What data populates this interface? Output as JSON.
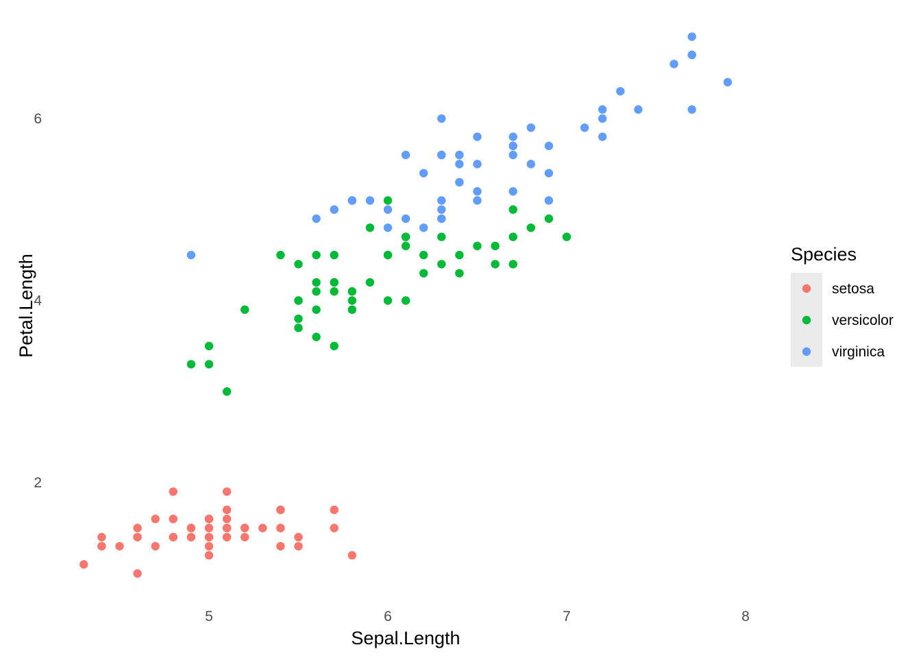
{
  "chart_data": {
    "type": "scatter",
    "xlabel": "Sepal.Length",
    "ylabel": "Petal.Length",
    "xlim": [
      4.3,
      7.9
    ],
    "ylim": [
      1.0,
      6.9
    ],
    "x_ticks": [
      5,
      6,
      7,
      8
    ],
    "y_ticks": [
      2,
      4,
      6
    ],
    "x_tick_labels": [
      "5",
      "6",
      "7",
      "8"
    ],
    "y_tick_labels": [
      "2",
      "4",
      "6"
    ],
    "grid": false,
    "legend": {
      "title": "Species",
      "position": "right"
    },
    "series": [
      {
        "name": "setosa",
        "color": "#F8766D",
        "points": [
          [
            5.1,
            1.4
          ],
          [
            4.9,
            1.4
          ],
          [
            4.7,
            1.3
          ],
          [
            4.6,
            1.5
          ],
          [
            5.0,
            1.4
          ],
          [
            5.4,
            1.7
          ],
          [
            4.6,
            1.4
          ],
          [
            5.0,
            1.5
          ],
          [
            4.4,
            1.4
          ],
          [
            4.9,
            1.5
          ],
          [
            5.4,
            1.5
          ],
          [
            4.8,
            1.6
          ],
          [
            4.8,
            1.4
          ],
          [
            4.3,
            1.1
          ],
          [
            5.8,
            1.2
          ],
          [
            5.7,
            1.5
          ],
          [
            5.4,
            1.3
          ],
          [
            5.1,
            1.4
          ],
          [
            5.7,
            1.7
          ],
          [
            5.1,
            1.5
          ],
          [
            5.4,
            1.7
          ],
          [
            5.1,
            1.5
          ],
          [
            4.6,
            1.0
          ],
          [
            5.1,
            1.7
          ],
          [
            4.8,
            1.9
          ],
          [
            5.0,
            1.6
          ],
          [
            5.0,
            1.6
          ],
          [
            5.2,
            1.5
          ],
          [
            5.2,
            1.4
          ],
          [
            4.7,
            1.6
          ],
          [
            4.8,
            1.6
          ],
          [
            5.4,
            1.5
          ],
          [
            5.2,
            1.5
          ],
          [
            5.5,
            1.4
          ],
          [
            4.9,
            1.5
          ],
          [
            5.0,
            1.2
          ],
          [
            5.5,
            1.3
          ],
          [
            4.9,
            1.4
          ],
          [
            4.4,
            1.3
          ],
          [
            5.1,
            1.5
          ],
          [
            5.0,
            1.3
          ],
          [
            4.5,
            1.3
          ],
          [
            4.4,
            1.3
          ],
          [
            5.0,
            1.6
          ],
          [
            5.1,
            1.9
          ],
          [
            4.8,
            1.4
          ],
          [
            5.1,
            1.6
          ],
          [
            4.6,
            1.4
          ],
          [
            5.3,
            1.5
          ],
          [
            5.0,
            1.4
          ]
        ]
      },
      {
        "name": "versicolor",
        "color": "#00BA38",
        "points": [
          [
            7.0,
            4.7
          ],
          [
            6.4,
            4.5
          ],
          [
            6.9,
            4.9
          ],
          [
            5.5,
            4.0
          ],
          [
            6.5,
            4.6
          ],
          [
            5.7,
            4.5
          ],
          [
            6.3,
            4.7
          ],
          [
            4.9,
            3.3
          ],
          [
            6.6,
            4.6
          ],
          [
            5.2,
            3.9
          ],
          [
            5.0,
            3.5
          ],
          [
            5.9,
            4.2
          ],
          [
            6.0,
            4.0
          ],
          [
            6.1,
            4.7
          ],
          [
            5.6,
            3.6
          ],
          [
            6.7,
            4.4
          ],
          [
            5.6,
            4.5
          ],
          [
            5.8,
            4.1
          ],
          [
            6.2,
            4.5
          ],
          [
            5.6,
            3.9
          ],
          [
            5.9,
            4.8
          ],
          [
            6.1,
            4.0
          ],
          [
            6.3,
            4.9
          ],
          [
            6.1,
            4.7
          ],
          [
            6.4,
            4.3
          ],
          [
            6.6,
            4.4
          ],
          [
            6.8,
            4.8
          ],
          [
            6.7,
            5.0
          ],
          [
            6.0,
            4.5
          ],
          [
            5.7,
            3.5
          ],
          [
            5.5,
            3.8
          ],
          [
            5.5,
            3.7
          ],
          [
            5.8,
            3.9
          ],
          [
            6.0,
            5.1
          ],
          [
            5.4,
            4.5
          ],
          [
            6.0,
            4.5
          ],
          [
            6.7,
            4.7
          ],
          [
            6.3,
            4.4
          ],
          [
            5.6,
            4.1
          ],
          [
            5.5,
            4.0
          ],
          [
            5.5,
            4.4
          ],
          [
            6.1,
            4.6
          ],
          [
            5.8,
            4.0
          ],
          [
            5.0,
            3.3
          ],
          [
            5.6,
            4.2
          ],
          [
            5.7,
            4.2
          ],
          [
            5.7,
            4.2
          ],
          [
            6.2,
            4.3
          ],
          [
            5.1,
            3.0
          ],
          [
            5.7,
            4.1
          ]
        ]
      },
      {
        "name": "virginica",
        "color": "#619CFF",
        "points": [
          [
            6.3,
            6.0
          ],
          [
            5.8,
            5.1
          ],
          [
            7.1,
            5.9
          ],
          [
            6.3,
            5.6
          ],
          [
            6.5,
            5.8
          ],
          [
            7.6,
            6.6
          ],
          [
            4.9,
            4.5
          ],
          [
            7.3,
            6.3
          ],
          [
            6.7,
            5.8
          ],
          [
            7.2,
            6.1
          ],
          [
            6.5,
            5.1
          ],
          [
            6.4,
            5.3
          ],
          [
            6.8,
            5.5
          ],
          [
            5.7,
            5.0
          ],
          [
            5.8,
            5.1
          ],
          [
            6.4,
            5.3
          ],
          [
            6.5,
            5.5
          ],
          [
            7.7,
            6.7
          ],
          [
            7.7,
            6.9
          ],
          [
            6.0,
            5.0
          ],
          [
            6.9,
            5.7
          ],
          [
            5.6,
            4.9
          ],
          [
            7.7,
            6.7
          ],
          [
            6.3,
            4.9
          ],
          [
            6.7,
            5.7
          ],
          [
            7.2,
            6.0
          ],
          [
            6.2,
            4.8
          ],
          [
            6.1,
            4.9
          ],
          [
            6.4,
            5.6
          ],
          [
            7.2,
            5.8
          ],
          [
            7.4,
            6.1
          ],
          [
            7.9,
            6.4
          ],
          [
            6.4,
            5.6
          ],
          [
            6.3,
            5.1
          ],
          [
            6.1,
            5.6
          ],
          [
            7.7,
            6.1
          ],
          [
            6.3,
            5.6
          ],
          [
            6.4,
            5.5
          ],
          [
            6.0,
            4.8
          ],
          [
            6.9,
            5.4
          ],
          [
            6.7,
            5.6
          ],
          [
            6.9,
            5.1
          ],
          [
            5.8,
            5.1
          ],
          [
            6.8,
            5.9
          ],
          [
            6.7,
            5.7
          ],
          [
            6.7,
            5.2
          ],
          [
            6.3,
            5.0
          ],
          [
            6.5,
            5.2
          ],
          [
            6.2,
            5.4
          ],
          [
            5.9,
            5.1
          ]
        ]
      }
    ]
  }
}
